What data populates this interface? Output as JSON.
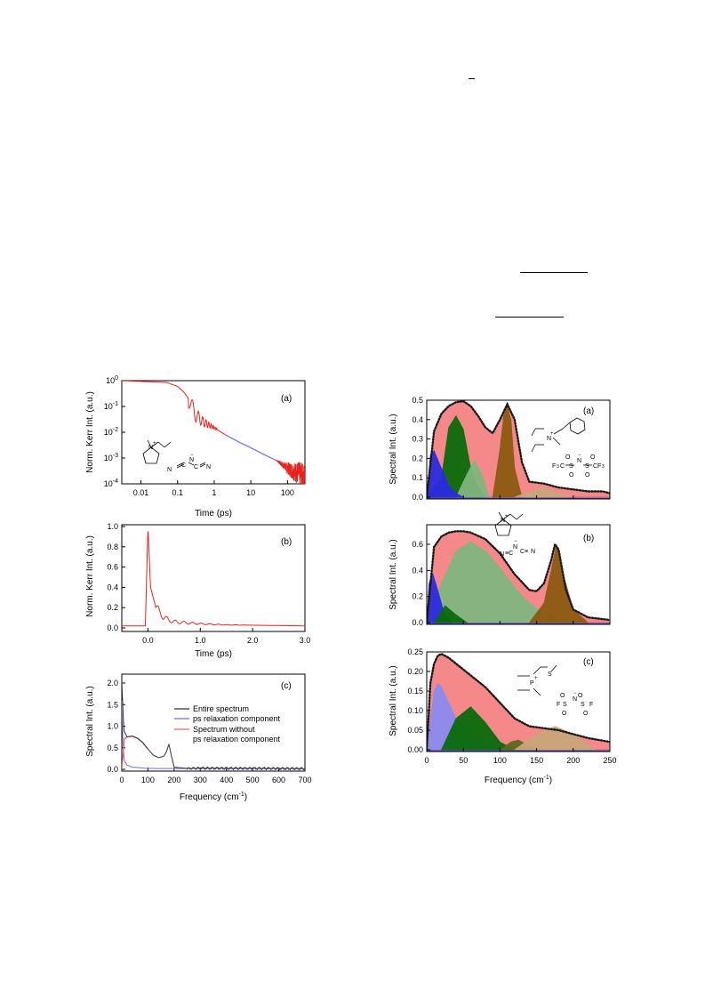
{
  "left_figure": {
    "a": {
      "label": "(a)",
      "ylabel": "Norm. Kerr Int. (a.u.)",
      "xlabel": "Time (ps)",
      "xticks": [
        "0.01",
        "0.1",
        "1",
        "10",
        "100"
      ],
      "yticks": [
        {
          "base": "10",
          "exp": "0"
        },
        {
          "base": "10",
          "exp": "-1"
        },
        {
          "base": "10",
          "exp": "-2"
        },
        {
          "base": "10",
          "exp": "-3"
        },
        {
          "base": "10",
          "exp": "-4"
        }
      ],
      "colors": {
        "signal": "#e8231f",
        "fit": "#7f7fe6"
      }
    },
    "b": {
      "label": "(b)",
      "ylabel": "Norm. Kerr Int. (a.u.)",
      "xlabel": "Time (ps)",
      "xticks": [
        "0.0",
        "1.0",
        "2.0",
        "3.0"
      ],
      "yticks": [
        "0.0",
        "0.2",
        "0.4",
        "0.6",
        "0.8",
        "1.0"
      ]
    },
    "c": {
      "label": "(c)",
      "ylabel": "Spectral Int. (a.u.)",
      "xlabel": "Frequency (cm",
      "xlabel_sup": "-1",
      "xlabel_end": ")",
      "xticks": [
        "0",
        "100",
        "200",
        "300",
        "400",
        "500",
        "600",
        "700"
      ],
      "yticks": [
        "0.0",
        "0.5",
        "1.0",
        "1.5",
        "2.0"
      ],
      "legend": [
        {
          "label": "Entire spectrum",
          "color": "#333333"
        },
        {
          "label": "ps relaxation component",
          "color": "#7070e0"
        },
        {
          "label": "Spectrum without",
          "color": "#f06060"
        },
        {
          "label": "ps relaxation component",
          "color": ""
        }
      ]
    }
  },
  "right_figure": {
    "ylabel": "Spectral Int. (a.u.)",
    "xlabel": "Frequency (cm",
    "xlabel_sup": "-1",
    "xlabel_end": ")",
    "xticks": [
      "0",
      "50",
      "100",
      "150",
      "200",
      "250"
    ],
    "a": {
      "label": "(a)",
      "yticks": [
        "0.0",
        "0.1",
        "0.2",
        "0.3",
        "0.4",
        "0.5"
      ]
    },
    "b": {
      "label": "(b)",
      "yticks": [
        "0.0",
        "0.2",
        "0.4",
        "0.6"
      ]
    },
    "c": {
      "label": "(c)",
      "yticks": [
        "0.00",
        "0.05",
        "0.10",
        "0.15",
        "0.20",
        "0.25"
      ]
    },
    "colors": {
      "total": "#f47c7c",
      "blue": "#2a2ae0",
      "light_blue": "#8a8af0",
      "dark_green": "#0a6a0a",
      "light_green": "#7fb57f",
      "brown": "#8a5a10",
      "tan": "#c8a678"
    }
  },
  "chart_data": [
    {
      "type": "line",
      "panel": "left (a)",
      "xlabel": "Time (ps)",
      "ylabel": "Norm. Kerr Int. (a.u.)",
      "xscale": "log",
      "yscale": "log",
      "xlim": [
        0.003,
        300
      ],
      "ylim": [
        0.0001,
        1
      ],
      "series": [
        {
          "color": "#e8231f",
          "x": [
            0.003,
            0.05,
            0.1,
            0.15,
            0.2,
            0.3,
            0.5,
            1,
            2
          ],
          "y": [
            1.0,
            0.85,
            0.6,
            0.35,
            0.2,
            0.05,
            0.025,
            0.015,
            0.008
          ]
        },
        {
          "color": "#7f7fe6",
          "x": [
            2,
            5,
            10,
            20,
            50
          ],
          "y": [
            0.008,
            0.004,
            0.0025,
            0.0015,
            0.0008
          ]
        },
        {
          "color": "#e8231f",
          "x": [
            50,
            100,
            200,
            300
          ],
          "y": [
            0.0008,
            0.0004,
            0.00025,
            0.00015
          ]
        }
      ]
    },
    {
      "type": "line",
      "panel": "left (b)",
      "xlabel": "Time (ps)",
      "ylabel": "Norm. Kerr Int. (a.u.)",
      "xlim": [
        -0.5,
        3.0
      ],
      "ylim": [
        0,
        1.0
      ],
      "series": [
        {
          "color": "#e8231f",
          "x": [
            -0.5,
            -0.05,
            0.0,
            0.05,
            0.1,
            0.15,
            0.2,
            0.3,
            0.5,
            1.0,
            1.5,
            3.0
          ],
          "y": [
            0.02,
            0.02,
            1.0,
            0.4,
            0.3,
            0.2,
            0.18,
            0.1,
            0.06,
            0.04,
            0.03,
            0.02
          ]
        }
      ]
    },
    {
      "type": "line",
      "panel": "left (c)",
      "xlabel": "Frequency (cm-1)",
      "ylabel": "Spectral Int. (a.u.)",
      "xlim": [
        0,
        700
      ],
      "ylim": [
        0,
        2.1
      ],
      "series": [
        {
          "name": "Entire spectrum",
          "color": "#333333",
          "x": [
            0,
            3,
            8,
            20,
            40,
            60,
            80,
            100,
            120,
            140,
            160,
            170,
            180,
            190,
            200,
            250,
            300,
            700
          ],
          "y": [
            2.05,
            1.6,
            0.9,
            0.75,
            0.77,
            0.72,
            0.62,
            0.47,
            0.33,
            0.27,
            0.3,
            0.4,
            0.58,
            0.3,
            0.05,
            0.02,
            0.03,
            0.02
          ]
        },
        {
          "name": "ps relaxation component",
          "color": "#7070e0",
          "x": [
            0,
            5,
            10,
            20,
            40,
            100,
            700
          ],
          "y": [
            1.6,
            0.5,
            0.2,
            0.1,
            0.05,
            0.02,
            0.01
          ]
        },
        {
          "name": "Spectrum without ps relaxation component",
          "color": "#f06060",
          "x": [
            0,
            10,
            20,
            40,
            60,
            80,
            100
          ],
          "y": [
            0.0,
            0.7,
            0.75,
            0.77,
            0.72,
            0.62,
            0.47
          ]
        }
      ]
    },
    {
      "type": "area",
      "panel": "right (a)",
      "xlabel": "Frequency (cm-1)",
      "ylabel": "Spectral Int. (a.u.)",
      "xlim": [
        0,
        250
      ],
      "ylim": [
        0,
        0.5
      ],
      "series": [
        {
          "color": "#f47c7c",
          "x": [
            0,
            10,
            20,
            30,
            40,
            50,
            60,
            70,
            80,
            90,
            100,
            110,
            120,
            130,
            140,
            160,
            180,
            200,
            220,
            240,
            250
          ],
          "y": [
            0,
            0.34,
            0.43,
            0.47,
            0.49,
            0.495,
            0.47,
            0.42,
            0.36,
            0.33,
            0.4,
            0.48,
            0.4,
            0.18,
            0.08,
            0.07,
            0.05,
            0.04,
            0.03,
            0.03,
            0.02
          ]
        },
        {
          "color": "#0a6a0a",
          "x": [
            0,
            20,
            30,
            40,
            50,
            60,
            70,
            80
          ],
          "y": [
            0,
            0.1,
            0.36,
            0.42,
            0.35,
            0.15,
            0.05,
            0
          ]
        },
        {
          "color": "#7fb57f",
          "x": [
            40,
            55,
            65,
            75,
            85
          ],
          "y": [
            0,
            0.12,
            0.19,
            0.12,
            0
          ]
        },
        {
          "color": "#2a2ae0",
          "x": [
            0,
            5,
            10,
            20,
            30,
            40,
            50
          ],
          "y": [
            0,
            0.22,
            0.24,
            0.15,
            0.06,
            0.02,
            0
          ]
        },
        {
          "color": "#8a5a10",
          "x": [
            90,
            100,
            105,
            110,
            115,
            120,
            130
          ],
          "y": [
            0,
            0.25,
            0.42,
            0.47,
            0.4,
            0.15,
            0
          ]
        },
        {
          "color": "#c8a678",
          "x": [
            120,
            140,
            160,
            180,
            200
          ],
          "y": [
            0,
            0.03,
            0.05,
            0.02,
            0
          ]
        }
      ]
    },
    {
      "type": "area",
      "panel": "right (b)",
      "xlabel": "Frequency (cm-1)",
      "ylabel": "Spectral Int. (a.u.)",
      "xlim": [
        0,
        250
      ],
      "ylim": [
        0,
        0.75
      ],
      "series": [
        {
          "color": "#f47c7c",
          "x": [
            0,
            10,
            20,
            30,
            40,
            50,
            60,
            80,
            100,
            120,
            140,
            150,
            160,
            170,
            175,
            180,
            190,
            200,
            220,
            250
          ],
          "y": [
            0,
            0.58,
            0.66,
            0.69,
            0.7,
            0.7,
            0.69,
            0.64,
            0.53,
            0.37,
            0.25,
            0.24,
            0.3,
            0.48,
            0.6,
            0.56,
            0.25,
            0.1,
            0.04,
            0.02
          ]
        },
        {
          "color": "#7fb57f",
          "x": [
            0,
            20,
            40,
            60,
            80,
            100,
            120,
            140,
            160,
            180,
            200
          ],
          "y": [
            0,
            0.3,
            0.55,
            0.62,
            0.55,
            0.42,
            0.27,
            0.15,
            0.07,
            0.03,
            0
          ]
        },
        {
          "color": "#2a2ae0",
          "x": [
            0,
            3,
            8,
            15,
            25,
            35
          ],
          "y": [
            0,
            0.3,
            0.38,
            0.25,
            0.05,
            0
          ]
        },
        {
          "color": "#0a6a0a",
          "x": [
            10,
            25,
            40,
            55
          ],
          "y": [
            0,
            0.13,
            0.06,
            0
          ]
        },
        {
          "color": "#8a5a10",
          "x": [
            140,
            160,
            170,
            177,
            185,
            200,
            220
          ],
          "y": [
            0,
            0.15,
            0.4,
            0.6,
            0.4,
            0.1,
            0
          ]
        }
      ]
    },
    {
      "type": "area",
      "panel": "right (c)",
      "xlabel": "Frequency (cm-1)",
      "ylabel": "Spectral Int. (a.u.)",
      "xlim": [
        0,
        250
      ],
      "ylim": [
        0,
        0.25
      ],
      "series": [
        {
          "color": "#f47c7c",
          "x": [
            0,
            5,
            10,
            15,
            20,
            25,
            30,
            40,
            60,
            80,
            100,
            120,
            140,
            160,
            180,
            200,
            220,
            250
          ],
          "y": [
            0,
            0.17,
            0.22,
            0.24,
            0.245,
            0.24,
            0.235,
            0.22,
            0.19,
            0.16,
            0.12,
            0.08,
            0.06,
            0.055,
            0.05,
            0.04,
            0.03,
            0.02
          ]
        },
        {
          "color": "#8a8af0",
          "x": [
            0,
            10,
            15,
            20,
            30,
            40,
            60,
            80,
            100,
            110
          ],
          "y": [
            0,
            0.15,
            0.17,
            0.16,
            0.12,
            0.08,
            0.04,
            0.015,
            0.005,
            0
          ]
        },
        {
          "color": "#0a6a0a",
          "x": [
            20,
            40,
            60,
            80,
            100,
            120
          ],
          "y": [
            0,
            0.08,
            0.11,
            0.07,
            0.02,
            0
          ]
        },
        {
          "color": "#5a6a1a",
          "x": [
            100,
            115,
            125,
            140,
            150
          ],
          "y": [
            0,
            0.02,
            0.025,
            0.01,
            0
          ]
        },
        {
          "color": "#c8a678",
          "x": [
            120,
            150,
            175,
            200,
            230
          ],
          "y": [
            0,
            0.04,
            0.06,
            0.04,
            0
          ]
        }
      ]
    }
  ]
}
